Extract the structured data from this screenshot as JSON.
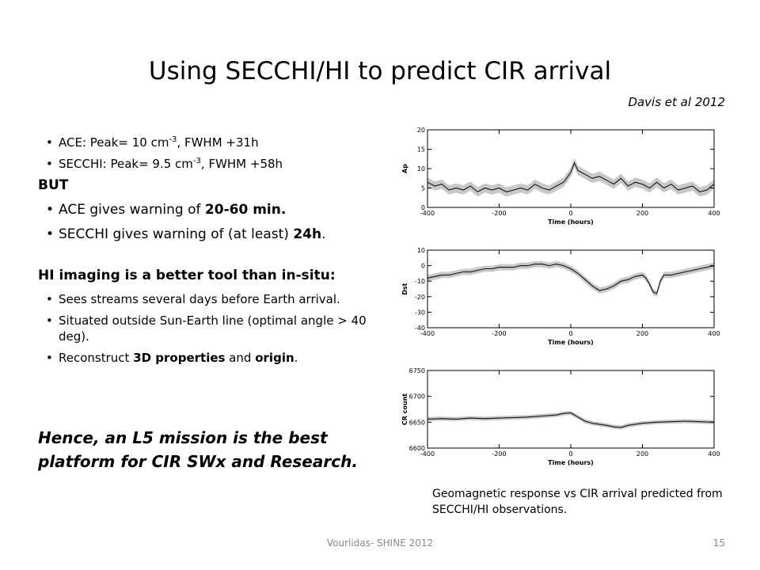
{
  "slide": {
    "title": "Using SECCHI/HI to predict CIR arrival",
    "reference": "Davis et al 2012",
    "bullets_small": [
      {
        "prefix": "ACE: Peak= 10 cm",
        "sup": "-3",
        "suffix": ", FWHM +31h"
      },
      {
        "prefix": "SECCHI: Peak= 9.5 cm",
        "sup": "-3",
        "suffix": ", FWHM +58h"
      }
    ],
    "but_label": "BUT",
    "warning_bullets": [
      {
        "prefix": "ACE gives warning of ",
        "bold": "20-60 min.",
        "suffix": ""
      },
      {
        "prefix": "SECCHI gives warning of (at least) ",
        "bold": "24h",
        "suffix": "."
      }
    ],
    "hi_heading": "HI imaging is a better tool than in-situ:",
    "hi_bullets": [
      {
        "text": "Sees streams several days before Earth arrival."
      },
      {
        "text": "Situated outside Sun-Earth line (optimal angle > 40 deg)."
      },
      {
        "prefix": "Reconstruct ",
        "bold1": "3D properties",
        "mid": " and ",
        "bold2": "origin",
        "suffix": "."
      }
    ],
    "conclusion": "Hence, an L5 mission is the best platform for CIR SWx and Research.",
    "caption": "Geomagnetic response vs CIR arrival predicted from SECCHI/HI observations.",
    "footer": "Vourlidas- SHINE 2012",
    "page_number": "15"
  },
  "chart_data": [
    {
      "type": "line",
      "xlabel": "Time (hours)",
      "ylabel": "Ap",
      "xlim": [
        -400,
        400
      ],
      "ylim": [
        0,
        20
      ],
      "xticks": [
        -400,
        -200,
        0,
        200,
        400
      ],
      "yticks": [
        0,
        5,
        10,
        15,
        20
      ],
      "x": [
        -400,
        -380,
        -360,
        -340,
        -320,
        -300,
        -280,
        -260,
        -240,
        -220,
        -200,
        -180,
        -160,
        -140,
        -120,
        -100,
        -80,
        -60,
        -40,
        -20,
        0,
        10,
        20,
        40,
        60,
        80,
        100,
        120,
        140,
        160,
        180,
        200,
        220,
        240,
        260,
        280,
        300,
        320,
        340,
        360,
        380,
        400
      ],
      "y": [
        6.5,
        5.5,
        6,
        4.5,
        5,
        4.5,
        5.5,
        4,
        5,
        4.5,
        5,
        4,
        4.5,
        5,
        4.5,
        6,
        5,
        4.5,
        5.5,
        6.5,
        9,
        11.5,
        9.5,
        8.5,
        7.5,
        8,
        7,
        6,
        7.5,
        5.5,
        6.5,
        6,
        5,
        6.5,
        5,
        6,
        4.5,
        5,
        5.5,
        4,
        4.5,
        6
      ],
      "band": 1.2,
      "line_color": "#111111",
      "band_color": "#c8c8c8"
    },
    {
      "type": "line",
      "xlabel": "Time (hours)",
      "ylabel": "Dst",
      "xlim": [
        -400,
        400
      ],
      "ylim": [
        -40,
        10
      ],
      "xticks": [
        -400,
        -200,
        0,
        200,
        400
      ],
      "yticks": [
        -40,
        -30,
        -20,
        -10,
        0,
        10
      ],
      "x": [
        -400,
        -380,
        -360,
        -340,
        -320,
        -300,
        -280,
        -260,
        -240,
        -220,
        -200,
        -180,
        -160,
        -140,
        -120,
        -100,
        -80,
        -60,
        -40,
        -20,
        0,
        20,
        40,
        60,
        80,
        100,
        120,
        140,
        160,
        180,
        200,
        210,
        220,
        230,
        240,
        250,
        260,
        280,
        300,
        320,
        340,
        360,
        380,
        400
      ],
      "y": [
        -8,
        -7,
        -6,
        -6,
        -5,
        -4,
        -4,
        -3,
        -2,
        -2,
        -1,
        -1,
        -1,
        0,
        0,
        1,
        1,
        0,
        1,
        0,
        -2,
        -5,
        -9,
        -13,
        -16,
        -15,
        -13,
        -10,
        -9,
        -7,
        -6,
        -8,
        -12,
        -17,
        -18,
        -10,
        -6,
        -6,
        -5,
        -4,
        -3,
        -2,
        -1,
        0
      ],
      "band": 2.0,
      "line_color": "#111111",
      "band_color": "#c8c8c8"
    },
    {
      "type": "line",
      "xlabel": "Time (hours)",
      "ylabel": "CR count",
      "xlim": [
        -400,
        400
      ],
      "ylim": [
        6600,
        6750
      ],
      "xticks": [
        -400,
        -200,
        0,
        200,
        400
      ],
      "yticks": [
        6600,
        6650,
        6700,
        6750
      ],
      "x": [
        -400,
        -360,
        -320,
        -280,
        -240,
        -200,
        -160,
        -120,
        -80,
        -40,
        -20,
        0,
        20,
        40,
        60,
        80,
        100,
        120,
        140,
        160,
        200,
        240,
        280,
        320,
        360,
        400
      ],
      "y": [
        6656,
        6657,
        6656,
        6658,
        6657,
        6658,
        6659,
        6660,
        6662,
        6664,
        6667,
        6668,
        6660,
        6652,
        6648,
        6646,
        6644,
        6641,
        6640,
        6644,
        6648,
        6650,
        6651,
        6652,
        6651,
        6650
      ],
      "band": 4,
      "line_color": "#111111",
      "band_color": "#c8c8c8"
    }
  ]
}
